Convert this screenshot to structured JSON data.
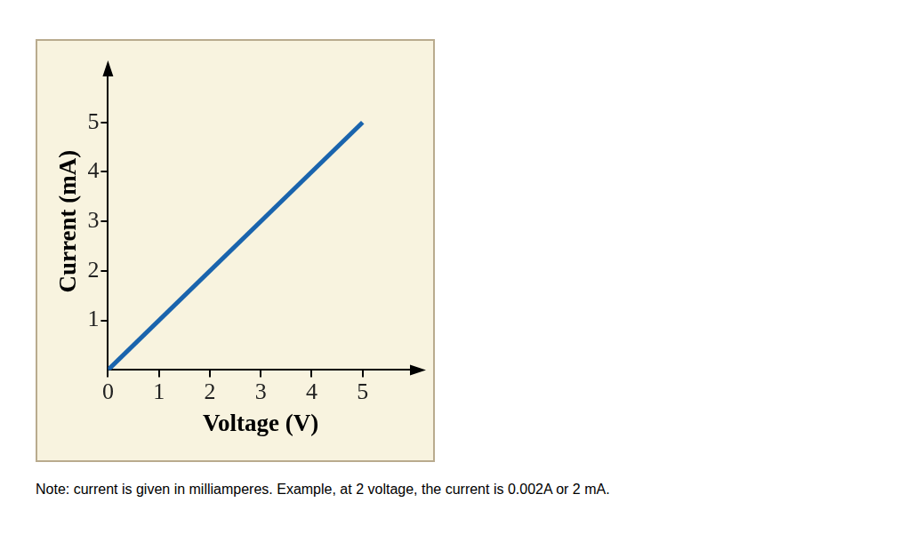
{
  "chart_data": {
    "type": "line",
    "x_label": "Voltage (V)",
    "y_label": "Current (mA)",
    "x": [
      0,
      5
    ],
    "values": [
      0,
      5
    ],
    "color": "#1a64ad",
    "xlim": [
      0,
      6
    ],
    "xticks": [
      0,
      1,
      2,
      3,
      4,
      5
    ],
    "ylim": [
      0,
      6
    ],
    "yticks": [
      1,
      2,
      3,
      4,
      5
    ],
    "grid": false,
    "annotations": [
      "Note: current is given in milliamperes. Example, at 2 voltage, the current is 0.002A or 2 mA."
    ]
  }
}
